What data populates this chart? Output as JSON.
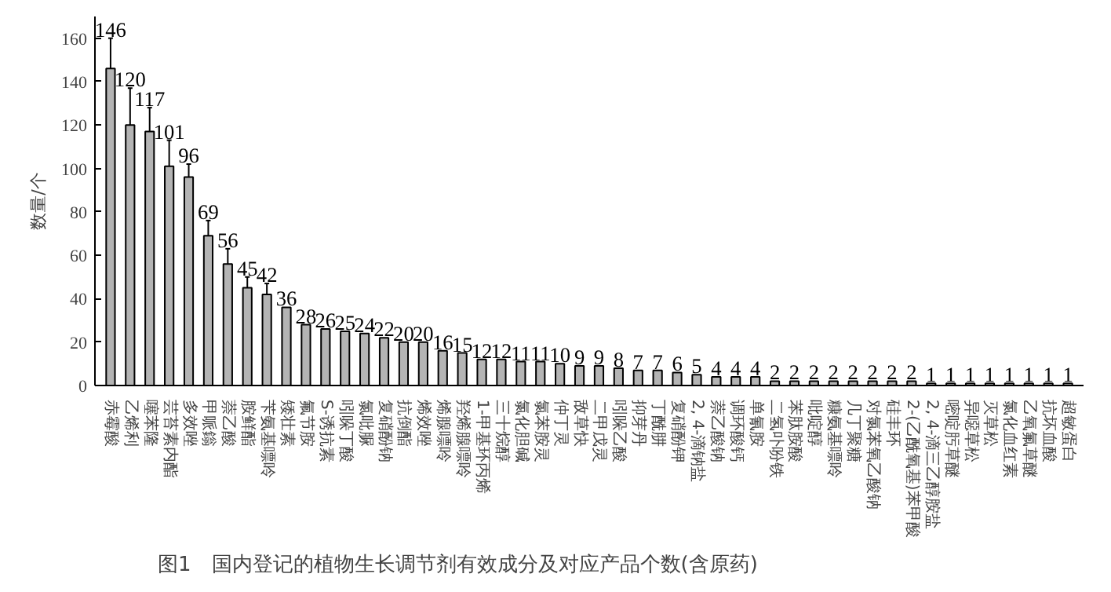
{
  "chart_data": {
    "type": "bar",
    "ylabel": "数量/个",
    "annotations": [
      "图1　国内登记的植物生长调节剂有效成分及对应产品个数(含原药)"
    ],
    "categories": [
      "赤霉酸",
      "乙烯利",
      "噻苯隆",
      "芸苔素内酯",
      "多效唑",
      "甲哌鎓",
      "萘乙酸",
      "胺鲜酯",
      "苄氨基嘌呤",
      "矮壮素",
      "氟节胺",
      "S-诱抗素",
      "吲哚丁酸",
      "氯吡脲",
      "复硝酚钠",
      "抗倒酯",
      "烯效唑",
      "烯腺嘌呤",
      "羟烯腺嘌呤",
      "1-甲基环丙烯",
      "三十烷醇",
      "氯化胆碱",
      "氯苯胺灵",
      "仲丁灵",
      "敌草快",
      "二甲戊灵",
      "吲哚乙酸",
      "抑芽丹",
      "丁酰肼",
      "复硝酚钾",
      "2, 4-滴钠盐",
      "萘乙酸钠",
      "调环酸钙",
      "单氰胺",
      "二氢卟吩铁",
      "苯肽胺酸",
      "吡啶醇",
      "糠氨基嘌呤",
      "几丁聚糖",
      "对氯苯氧乙酸钠",
      "硅丰环",
      "2-(乙酰氧基)苯甲酸",
      "2, 4-滴三乙醇胺盐",
      "嘧啶肟草醚",
      "异噁草松",
      "灭草松",
      "氯化血红素",
      "乙氧氟草醚",
      "抗坏血酸",
      "超敏蛋白"
    ],
    "values": [
      146,
      120,
      117,
      101,
      96,
      69,
      56,
      45,
      42,
      36,
      28,
      26,
      25,
      24,
      22,
      20,
      20,
      16,
      15,
      12,
      12,
      11,
      11,
      10,
      9,
      9,
      8,
      7,
      7,
      6,
      5,
      4,
      4,
      4,
      2,
      2,
      2,
      2,
      2,
      2,
      2,
      2,
      1,
      1,
      1,
      1,
      1,
      1,
      1,
      1
    ],
    "errors": [
      [
        146,
        160
      ],
      [
        120,
        137
      ],
      [
        117,
        128
      ],
      [
        101,
        113
      ],
      [
        96,
        102
      ],
      [
        69,
        76
      ],
      [
        56,
        63
      ],
      [
        45,
        50
      ],
      [
        42,
        47
      ],
      null,
      null,
      null,
      null,
      null,
      null,
      null,
      null,
      null,
      null,
      null,
      null,
      null,
      null,
      null,
      null,
      null,
      null,
      null,
      null,
      null,
      null,
      null,
      null,
      null,
      null,
      null,
      null,
      null,
      null,
      null,
      null,
      null,
      null,
      null,
      null,
      null,
      null,
      null,
      null,
      null
    ],
    "color": "#b4b4b4",
    "data_labels": true,
    "ylim": [
      0,
      170
    ],
    "yticks": [
      0,
      20,
      40,
      60,
      80,
      100,
      120,
      140,
      160
    ],
    "grid": false
  }
}
